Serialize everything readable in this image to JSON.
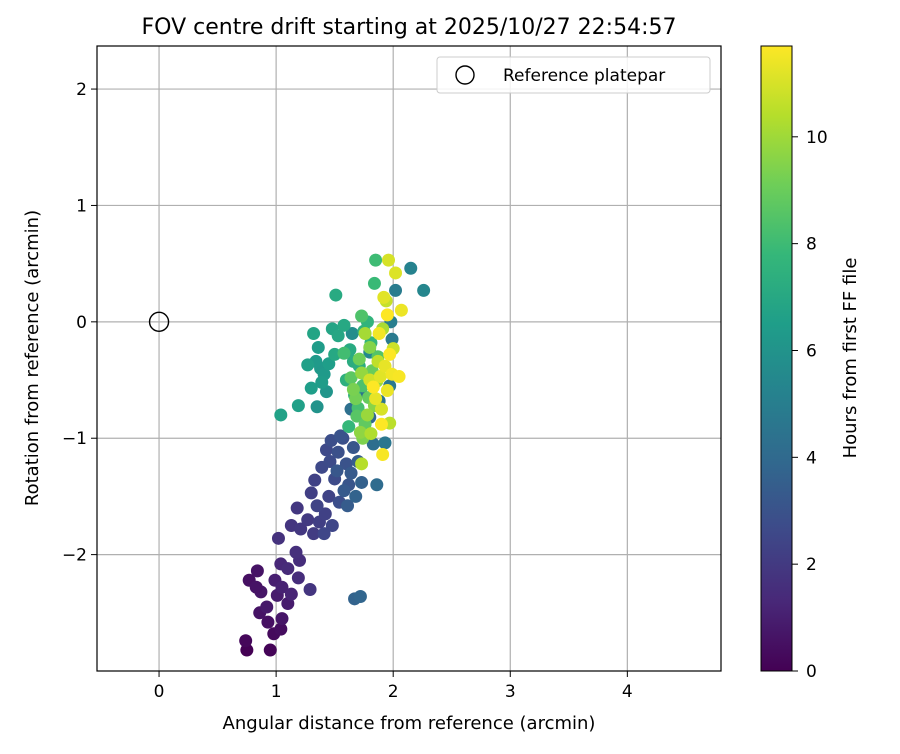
{
  "chart_data": {
    "type": "scatter",
    "title": "FOV centre drift starting at 2025/10/27 22:54:57",
    "xlabel": "Angular distance from reference (arcmin)",
    "ylabel": "Rotation from reference (arcmin)",
    "xlim": [
      -0.53,
      4.8
    ],
    "ylim": [
      -3.0,
      2.37
    ],
    "xticks": [
      0,
      1,
      2,
      3,
      4
    ],
    "yticks": [
      -2,
      -1,
      0,
      1,
      2
    ],
    "xtick_labels": [
      "0",
      "1",
      "2",
      "3",
      "4"
    ],
    "ytick_labels": [
      "−2",
      "−1",
      "0",
      "1",
      "2"
    ],
    "grid": true,
    "legend": {
      "position": "top-right",
      "entries": [
        "Reference platepar"
      ]
    },
    "reference_point": {
      "name": "Reference platepar",
      "x": 0,
      "y": 0
    },
    "colorbar": {
      "label": "Hours from first FF file",
      "min": 0,
      "max": 11.7,
      "ticks": [
        0,
        2,
        4,
        6,
        8,
        10
      ],
      "tick_labels": [
        "0",
        "2",
        "4",
        "6",
        "8",
        "10"
      ],
      "colormap": "viridis",
      "stops": [
        "#440154",
        "#482878",
        "#3e4989",
        "#31688e",
        "#26828e",
        "#1f9e89",
        "#35b779",
        "#6ece58",
        "#b5de2b",
        "#fde725"
      ]
    },
    "points": [
      [
        0.75,
        -2.82,
        0.0
      ],
      [
        0.95,
        -2.82,
        0.1
      ],
      [
        0.74,
        -2.74,
        0.2
      ],
      [
        0.98,
        -2.68,
        0.3
      ],
      [
        1.04,
        -2.64,
        0.4
      ],
      [
        0.93,
        -2.58,
        0.5
      ],
      [
        0.86,
        -2.5,
        0.6
      ],
      [
        1.05,
        -2.55,
        0.7
      ],
      [
        0.92,
        -2.45,
        0.8
      ],
      [
        1.1,
        -2.42,
        0.9
      ],
      [
        0.77,
        -2.22,
        0.5
      ],
      [
        0.84,
        -2.14,
        0.6
      ],
      [
        0.87,
        -2.32,
        0.7
      ],
      [
        0.83,
        -2.28,
        0.6
      ],
      [
        1.01,
        -2.35,
        0.9
      ],
      [
        0.99,
        -2.22,
        1.0
      ],
      [
        1.05,
        -2.28,
        1.1
      ],
      [
        1.13,
        -2.34,
        1.2
      ],
      [
        1.04,
        -2.08,
        1.3
      ],
      [
        1.1,
        -2.12,
        1.4
      ],
      [
        1.19,
        -2.2,
        1.5
      ],
      [
        1.2,
        -2.05,
        1.5
      ],
      [
        1.17,
        -1.98,
        1.6
      ],
      [
        1.02,
        -1.86,
        1.7
      ],
      [
        1.13,
        -1.75,
        1.8
      ],
      [
        1.21,
        -1.78,
        1.9
      ],
      [
        1.18,
        -1.6,
        1.9
      ],
      [
        1.29,
        -2.3,
        1.8
      ],
      [
        1.27,
        -1.7,
        2.0
      ],
      [
        1.32,
        -1.82,
        2.1
      ],
      [
        1.37,
        -1.72,
        2.2
      ],
      [
        1.3,
        -1.47,
        2.2
      ],
      [
        1.42,
        -1.65,
        2.3
      ],
      [
        1.33,
        -1.36,
        2.3
      ],
      [
        1.45,
        -1.5,
        2.4
      ],
      [
        1.35,
        -1.58,
        2.4
      ],
      [
        1.41,
        -1.82,
        2.5
      ],
      [
        1.48,
        -1.75,
        2.5
      ],
      [
        1.39,
        -1.25,
        2.6
      ],
      [
        1.43,
        -1.1,
        2.6
      ],
      [
        1.5,
        -1.35,
        2.7
      ],
      [
        1.46,
        -1.2,
        2.7
      ],
      [
        1.54,
        -1.55,
        2.8
      ],
      [
        1.47,
        -1.02,
        2.8
      ],
      [
        1.53,
        -1.12,
        2.9
      ],
      [
        1.57,
        -1.0,
        2.9
      ],
      [
        1.6,
        -1.22,
        3.0
      ],
      [
        1.55,
        -0.98,
        3.0
      ],
      [
        1.62,
        -1.4,
        3.1
      ],
      [
        1.66,
        -1.08,
        3.2
      ],
      [
        1.52,
        -1.28,
        3.2
      ],
      [
        1.58,
        -1.45,
        3.3
      ],
      [
        1.64,
        -1.3,
        3.3
      ],
      [
        1.61,
        -1.58,
        3.4
      ],
      [
        1.7,
        -1.2,
        3.5
      ],
      [
        1.73,
        -1.38,
        3.6
      ],
      [
        1.68,
        -1.5,
        3.7
      ],
      [
        1.67,
        -2.38,
        3.7
      ],
      [
        1.72,
        -2.36,
        3.8
      ],
      [
        1.8,
        -0.82,
        3.9
      ],
      [
        1.77,
        -0.98,
        4.0
      ],
      [
        1.86,
        -1.4,
        4.1
      ],
      [
        1.83,
        -1.05,
        4.2
      ],
      [
        1.64,
        -0.75,
        4.3
      ],
      [
        1.72,
        -0.6,
        4.4
      ],
      [
        1.88,
        -0.68,
        4.5
      ],
      [
        1.93,
        -1.04,
        4.6
      ],
      [
        1.97,
        -0.55,
        4.7
      ],
      [
        1.99,
        -0.15,
        4.8
      ],
      [
        2.02,
        0.27,
        4.9
      ],
      [
        1.98,
        0.0,
        5.0
      ],
      [
        2.15,
        0.46,
        5.2
      ],
      [
        2.26,
        0.27,
        5.4
      ],
      [
        1.8,
        -0.26,
        5.5
      ],
      [
        1.65,
        -0.1,
        5.7
      ],
      [
        1.35,
        -0.73,
        6.0
      ],
      [
        1.43,
        -0.6,
        6.1
      ],
      [
        1.38,
        -0.4,
        6.2
      ],
      [
        1.41,
        -0.45,
        6.3
      ],
      [
        1.34,
        -0.34,
        6.3
      ],
      [
        1.36,
        -0.22,
        6.4
      ],
      [
        1.39,
        -0.52,
        6.4
      ],
      [
        1.45,
        -0.36,
        6.5
      ],
      [
        1.3,
        -0.57,
        6.5
      ],
      [
        1.27,
        -0.37,
        6.6
      ],
      [
        1.19,
        -0.72,
        6.6
      ],
      [
        1.04,
        -0.8,
        6.7
      ],
      [
        1.32,
        -0.1,
        6.8
      ],
      [
        1.48,
        -0.06,
        6.8
      ],
      [
        1.53,
        -0.12,
        6.9
      ],
      [
        1.5,
        -0.28,
        7.0
      ],
      [
        1.58,
        -0.03,
        7.0
      ],
      [
        1.63,
        -0.24,
        7.1
      ],
      [
        1.51,
        0.23,
        7.1
      ],
      [
        1.66,
        -0.34,
        7.2
      ],
      [
        1.71,
        -0.38,
        7.3
      ],
      [
        1.6,
        -0.5,
        7.4
      ],
      [
        1.75,
        -0.08,
        7.5
      ],
      [
        1.78,
        0.0,
        7.6
      ],
      [
        1.67,
        -0.63,
        7.6
      ],
      [
        1.81,
        -0.18,
        7.7
      ],
      [
        1.62,
        -0.9,
        7.8
      ],
      [
        1.84,
        0.33,
        7.9
      ],
      [
        1.85,
        0.53,
        8.0
      ],
      [
        1.58,
        -0.27,
        8.1
      ],
      [
        1.7,
        -0.74,
        8.2
      ],
      [
        1.74,
        -0.55,
        8.3
      ],
      [
        1.73,
        0.05,
        8.4
      ],
      [
        1.87,
        -0.3,
        8.5
      ],
      [
        1.69,
        -0.81,
        8.6
      ],
      [
        1.64,
        -0.48,
        8.7
      ],
      [
        1.76,
        -0.88,
        8.8
      ],
      [
        1.79,
        -0.65,
        8.9
      ],
      [
        1.82,
        -0.42,
        9.0
      ],
      [
        1.71,
        -0.32,
        9.1
      ],
      [
        1.68,
        -0.66,
        9.2
      ],
      [
        1.66,
        -0.58,
        9.3
      ],
      [
        1.74,
        -1.0,
        9.4
      ],
      [
        1.8,
        -0.22,
        9.5
      ],
      [
        1.84,
        -0.72,
        9.6
      ],
      [
        1.72,
        -0.95,
        9.7
      ],
      [
        1.73,
        -0.44,
        9.8
      ],
      [
        1.78,
        -0.8,
        9.9
      ],
      [
        1.86,
        -0.51,
        10.0
      ],
      [
        1.76,
        -0.1,
        10.1
      ],
      [
        1.91,
        -0.06,
        10.2
      ],
      [
        1.81,
        -0.96,
        10.3
      ],
      [
        1.73,
        -1.22,
        10.4
      ],
      [
        1.97,
        -0.87,
        10.5
      ],
      [
        1.87,
        -0.34,
        10.6
      ],
      [
        1.94,
        0.18,
        10.7
      ],
      [
        2.0,
        -0.23,
        10.8
      ],
      [
        1.8,
        -0.5,
        10.9
      ],
      [
        1.96,
        0.53,
        11.0
      ],
      [
        1.9,
        -0.75,
        11.0
      ],
      [
        2.02,
        0.42,
        11.1
      ],
      [
        1.89,
        -0.47,
        11.2
      ],
      [
        1.92,
        0.21,
        11.2
      ],
      [
        1.85,
        -0.66,
        11.3
      ],
      [
        1.93,
        -0.38,
        11.3
      ],
      [
        2.07,
        0.1,
        11.4
      ],
      [
        1.95,
        -0.59,
        11.4
      ],
      [
        1.88,
        -0.1,
        11.5
      ],
      [
        1.99,
        -0.45,
        11.5
      ],
      [
        1.91,
        -1.14,
        11.6
      ],
      [
        2.05,
        -0.47,
        11.6
      ],
      [
        1.95,
        0.06,
        11.7
      ],
      [
        1.9,
        -0.88,
        11.7
      ],
      [
        1.83,
        -0.56,
        11.7
      ],
      [
        1.97,
        -0.28,
        11.7
      ]
    ]
  }
}
